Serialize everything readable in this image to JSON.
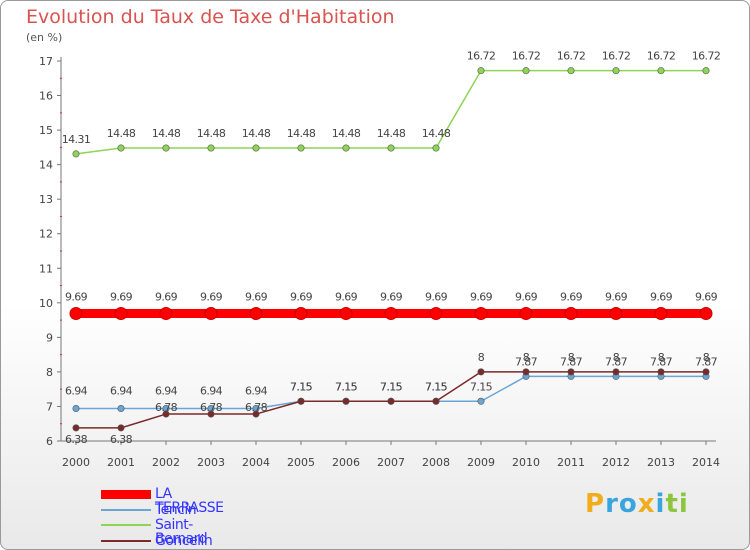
{
  "title": "Evolution du Taux de Taxe d'Habitation",
  "subtitle": "(en %)",
  "logo": {
    "text": "Proxiti",
    "letters": [
      "P",
      "r",
      "o",
      "x",
      "i",
      "t",
      "i"
    ],
    "colors": [
      "#f0ad1e",
      "#3aa5dd",
      "#3aa5dd",
      "#f0ad1e",
      "#3aa5dd",
      "#8cc63f",
      "#8cc63f"
    ]
  },
  "chart_data": {
    "type": "line",
    "title": "Evolution du Taux de Taxe d'Habitation",
    "ylabel": "(en %)",
    "xlabel": "",
    "x": [
      "2000",
      "2001",
      "2002",
      "2003",
      "2004",
      "2005",
      "2006",
      "2007",
      "2008",
      "2009",
      "2010",
      "2011",
      "2012",
      "2013",
      "2014"
    ],
    "ylim": [
      6,
      17
    ],
    "yticks": [
      "6",
      "7",
      "8",
      "9",
      "10",
      "11",
      "12",
      "13",
      "14",
      "15",
      "16",
      "17"
    ],
    "grid": false,
    "series": [
      {
        "name": "LA TERRASSE",
        "color": "#ff0000",
        "values": [
          9.69,
          9.69,
          9.69,
          9.69,
          9.69,
          9.69,
          9.69,
          9.69,
          9.69,
          9.69,
          9.69,
          9.69,
          9.69,
          9.69,
          9.69
        ],
        "labels": [
          "9.69",
          "9.69",
          "9.69",
          "9.69",
          "9.69",
          "9.69",
          "9.69",
          "9.69",
          "9.69",
          "9.69",
          "9.69",
          "9.69",
          "9.69",
          "9.69",
          "9.69"
        ]
      },
      {
        "name": "Tencin",
        "color": "#6aa5d6",
        "values": [
          6.94,
          6.94,
          6.94,
          6.94,
          6.94,
          7.15,
          7.15,
          7.15,
          7.15,
          7.15,
          7.87,
          7.87,
          7.87,
          7.87,
          7.87
        ],
        "labels": [
          "6.94",
          "6.94",
          "6.94",
          "6.94",
          "6.94",
          "7.15",
          "7.15",
          "7.15",
          "7.15",
          "7.15",
          "7.87",
          "7.87",
          "7.87",
          "7.87",
          "7.87"
        ]
      },
      {
        "name": "Saint-Bernard",
        "color": "#8ed455",
        "values": [
          14.31,
          14.48,
          14.48,
          14.48,
          14.48,
          14.48,
          14.48,
          14.48,
          14.48,
          16.72,
          16.72,
          16.72,
          16.72,
          16.72,
          16.72
        ],
        "labels": [
          "14.31",
          "14.48",
          "14.48",
          "14.48",
          "14.48",
          "14.48",
          "14.48",
          "14.48",
          "14.48",
          "16.72",
          "16.72",
          "16.72",
          "16.72",
          "16.72",
          "16.72"
        ]
      },
      {
        "name": "Goncelin",
        "color": "#7a2a2a",
        "values": [
          6.38,
          6.38,
          6.78,
          6.78,
          6.78,
          7.15,
          7.15,
          7.15,
          7.15,
          8,
          8,
          8,
          8,
          8,
          8
        ],
        "labels": [
          "6.38",
          "6.38",
          "6.78",
          "6.78",
          "6.78",
          "7.15",
          "7.15",
          "7.15",
          "7.15",
          "8",
          "8",
          "8",
          "8",
          "8",
          "8"
        ]
      }
    ]
  }
}
